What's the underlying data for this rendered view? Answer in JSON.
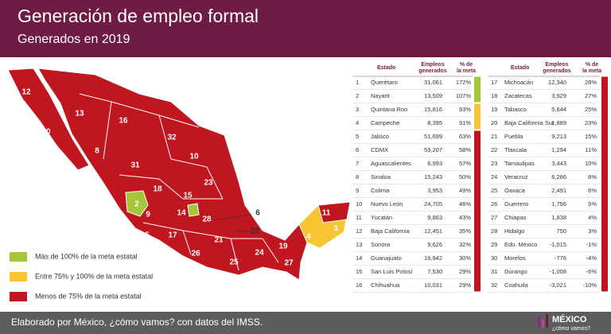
{
  "header": {
    "title": "Generación de empleo formal",
    "subtitle": "Generados en 2019"
  },
  "legend": [
    {
      "label": "Más de 100% de la meta estatal",
      "color": "#a4c639"
    },
    {
      "label": "Entre 75% y 100% de la meta estatal",
      "color": "#f7c531"
    },
    {
      "label": "Menos de 75% de la meta estatal",
      "color": "#c0161f"
    }
  ],
  "map": {
    "labels": [
      "12",
      "20",
      "13",
      "16",
      "32",
      "8",
      "10",
      "31",
      "23",
      "18",
      "15",
      "2",
      "9",
      "14",
      "28",
      "22",
      "6",
      "5",
      "17",
      "26",
      "21",
      "25",
      "24",
      "19",
      "27",
      "11",
      "3",
      "4"
    ]
  },
  "table": {
    "headers": [
      "Estado",
      "Empleos generados",
      "% de la meta"
    ],
    "left_rows": [
      [
        "1",
        "Querétaro",
        "31,061",
        "172%"
      ],
      [
        "2",
        "Nayarit",
        "13,509",
        "107%"
      ],
      [
        "3",
        "Quintana Roo",
        "15,816",
        "93%"
      ],
      [
        "4",
        "Campeche",
        "8,395",
        "91%"
      ],
      [
        "5",
        "Jalisco",
        "51,699",
        "63%"
      ],
      [
        "6",
        "CDMX",
        "59,207",
        "58%"
      ],
      [
        "7",
        "Aguascalientes",
        "6,993",
        "57%"
      ],
      [
        "8",
        "Sinaloa",
        "15,243",
        "50%"
      ],
      [
        "9",
        "Colima",
        "3,953",
        "49%"
      ],
      [
        "10",
        "Nuevo León",
        "24,705",
        "46%"
      ],
      [
        "11",
        "Yucatán",
        "9,863",
        "43%"
      ],
      [
        "12",
        "Baja California",
        "12,451",
        "35%"
      ],
      [
        "13",
        "Sonora",
        "9,626",
        "32%"
      ],
      [
        "14",
        "Guanajuato",
        "16,942",
        "30%"
      ],
      [
        "15",
        "San Luis Potosí",
        "7,530",
        "29%"
      ],
      [
        "16",
        "Chihuahua",
        "10,031",
        "29%"
      ]
    ],
    "right_rows": [
      [
        "17",
        "Michoacán",
        "12,340",
        "28%"
      ],
      [
        "18",
        "Zacatecas",
        "3,929",
        "27%"
      ],
      [
        "19",
        "Tabasco",
        "5,644",
        "25%"
      ],
      [
        "20",
        "Baja California Sur",
        "1,889",
        "23%"
      ],
      [
        "21",
        "Puebla",
        "9,213",
        "15%"
      ],
      [
        "22",
        "Tlaxcala",
        "1,294",
        "11%"
      ],
      [
        "23",
        "Tamaulipas",
        "3,443",
        "10%"
      ],
      [
        "24",
        "Veracruz",
        "6,286",
        "8%"
      ],
      [
        "25",
        "Oaxaca",
        "2,491",
        "6%"
      ],
      [
        "26",
        "Guerrero",
        "1,756",
        "5%"
      ],
      [
        "27",
        "Chiapas",
        "1,838",
        "4%"
      ],
      [
        "28",
        "Hidalgo",
        "750",
        "3%"
      ],
      [
        "29",
        "Edo. México",
        "-1,015",
        "-1%"
      ],
      [
        "30",
        "Morelos",
        "-776",
        "-4%"
      ],
      [
        "31",
        "Durango",
        "-1,008",
        "-6%"
      ],
      [
        "32",
        "Coahuila",
        "-3,021",
        "-10%"
      ]
    ]
  },
  "footer": {
    "text": "Elaborado por México, ¿cómo vamos? con datos del IMSS.",
    "logo_name": "MÉXICO",
    "logo_tagline": "¿cómo vamos?"
  }
}
